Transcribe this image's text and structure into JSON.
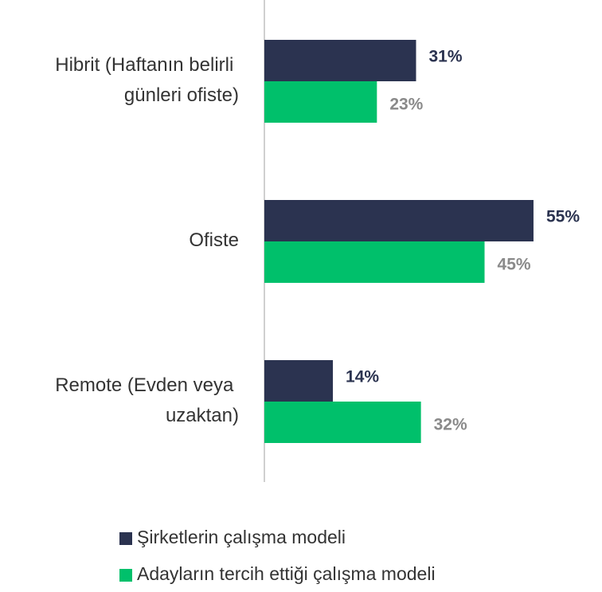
{
  "chart_data": {
    "type": "hbar",
    "categories": [
      "Hibrit (Haftanın belirli günleri ofiste)",
      "Ofiste",
      "Remote (Evden veya uzaktan)"
    ],
    "series": [
      {
        "name": "Şirketlerin çalışma modeli",
        "color": "#2b3350",
        "values": [
          31,
          55,
          14
        ],
        "value_labels": [
          "31%",
          "55%",
          "14%"
        ]
      },
      {
        "name": "Adayların tercih ettiği çalışma modeli",
        "color": "#00c06b",
        "values": [
          23,
          45,
          32
        ],
        "value_labels": [
          "23%",
          "45%",
          "32%"
        ]
      }
    ],
    "xlim": [
      0,
      69
    ]
  }
}
